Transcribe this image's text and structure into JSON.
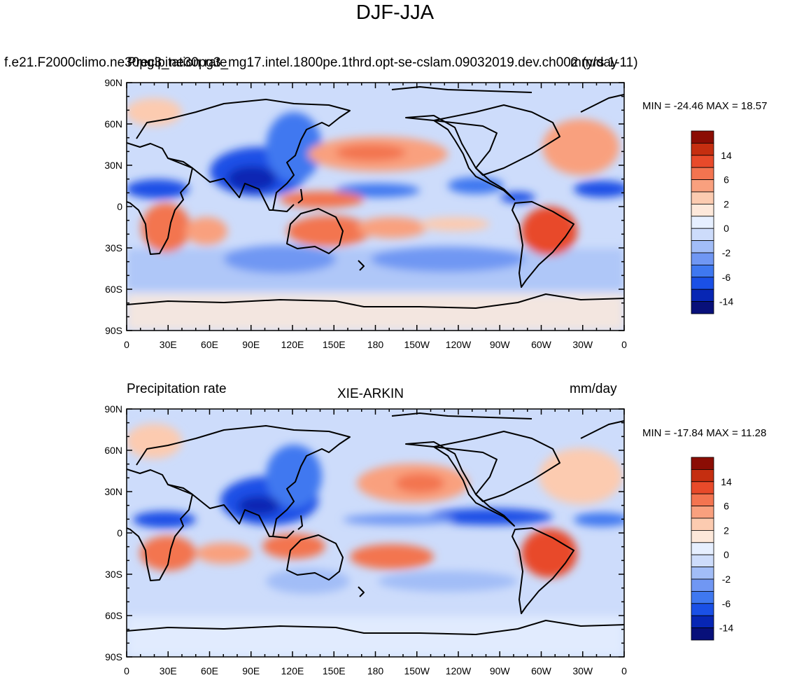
{
  "title": "DJF-JJA",
  "colors": {
    "levels": [
      "#08107a",
      "#0726b4",
      "#1a50e6",
      "#3f78f0",
      "#7097f3",
      "#a2bdf7",
      "#cddcfb",
      "#e6efff",
      "#fde8da",
      "#fccbb0",
      "#f9a07e",
      "#f37450",
      "#e84a2a",
      "#c52e10",
      "#8b0d04"
    ],
    "land": "#000000"
  },
  "colorbar": {
    "labels": [
      "14",
      "6",
      "2",
      "0",
      "-2",
      "-6",
      "-14"
    ]
  },
  "panels": [
    {
      "id": "model",
      "title_left": "f.e21.F2000climo.ne30pg3_ne30pg3_mg17.intel.1800pe.1thrd.opt-se-cslam.09032019.dev.ch002 (yrs 1-11)",
      "title_center": "Precipitation rate",
      "title_right": "mm/day",
      "stats": "MIN = -24.46 MAX =  18.57",
      "x_ticks": [
        "0",
        "30E",
        "60E",
        "90E",
        "120E",
        "150E",
        "180",
        "150W",
        "120W",
        "90W",
        "60W",
        "30W",
        "0"
      ],
      "y_ticks": [
        "90N",
        "60N",
        "30N",
        "0",
        "30S",
        "60S",
        "90S"
      ]
    },
    {
      "id": "obs",
      "title_left": "Precipitation rate",
      "title_center": "XIE-ARKIN",
      "title_right": "mm/day",
      "stats": "MIN = -17.84 MAX =  11.28",
      "x_ticks": [
        "0",
        "30E",
        "60E",
        "90E",
        "120E",
        "150E",
        "180",
        "150W",
        "120W",
        "90W",
        "60W",
        "30W",
        "0"
      ],
      "y_ticks": [
        "90N",
        "60N",
        "30N",
        "0",
        "30S",
        "60S",
        "90S"
      ]
    }
  ]
}
